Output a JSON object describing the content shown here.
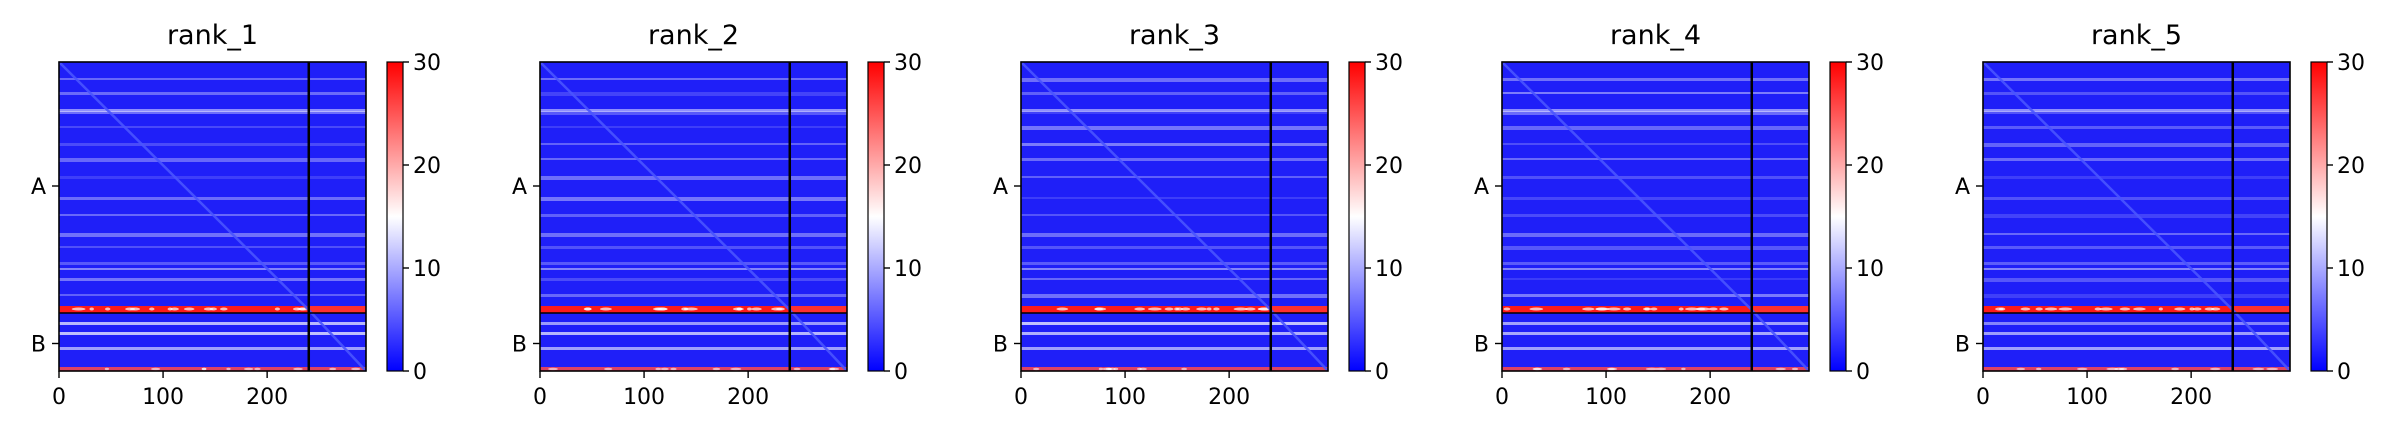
{
  "chart_data": [
    {
      "type": "heatmap",
      "title": "rank_1",
      "xticks": [
        0,
        100,
        200
      ],
      "xlim": [
        0,
        295
      ],
      "row_labels": [
        "A",
        "B"
      ],
      "chain_boundary": 240,
      "colorbar": {
        "range": [
          0,
          30
        ],
        "ticks": [
          0,
          10,
          20,
          30
        ],
        "colormap": "bwr"
      }
    },
    {
      "type": "heatmap",
      "title": "rank_2",
      "xticks": [
        0,
        100,
        200
      ],
      "xlim": [
        0,
        295
      ],
      "row_labels": [
        "A",
        "B"
      ],
      "chain_boundary": 240,
      "colorbar": {
        "range": [
          0,
          30
        ],
        "ticks": [
          0,
          10,
          20,
          30
        ],
        "colormap": "bwr"
      }
    },
    {
      "type": "heatmap",
      "title": "rank_3",
      "xticks": [
        0,
        100,
        200
      ],
      "xlim": [
        0,
        295
      ],
      "row_labels": [
        "A",
        "B"
      ],
      "chain_boundary": 240,
      "colorbar": {
        "range": [
          0,
          30
        ],
        "ticks": [
          0,
          10,
          20,
          30
        ],
        "colormap": "bwr"
      }
    },
    {
      "type": "heatmap",
      "title": "rank_4",
      "xticks": [
        0,
        100,
        200
      ],
      "xlim": [
        0,
        295
      ],
      "row_labels": [
        "A",
        "B"
      ],
      "chain_boundary": 240,
      "colorbar": {
        "range": [
          0,
          30
        ],
        "ticks": [
          0,
          10,
          20,
          30
        ],
        "colormap": "bwr"
      }
    },
    {
      "type": "heatmap",
      "title": "rank_5",
      "xticks": [
        0,
        100,
        200
      ],
      "xlim": [
        0,
        295
      ],
      "row_labels": [
        "A",
        "B"
      ],
      "chain_boundary": 240,
      "colorbar": {
        "range": [
          0,
          30
        ],
        "ticks": [
          0,
          10,
          20,
          30
        ],
        "colormap": "bwr"
      }
    }
  ],
  "colors": {
    "low": "#0000ff",
    "mid": "#ffffff",
    "high": "#ff0000",
    "divider": "#000000"
  }
}
